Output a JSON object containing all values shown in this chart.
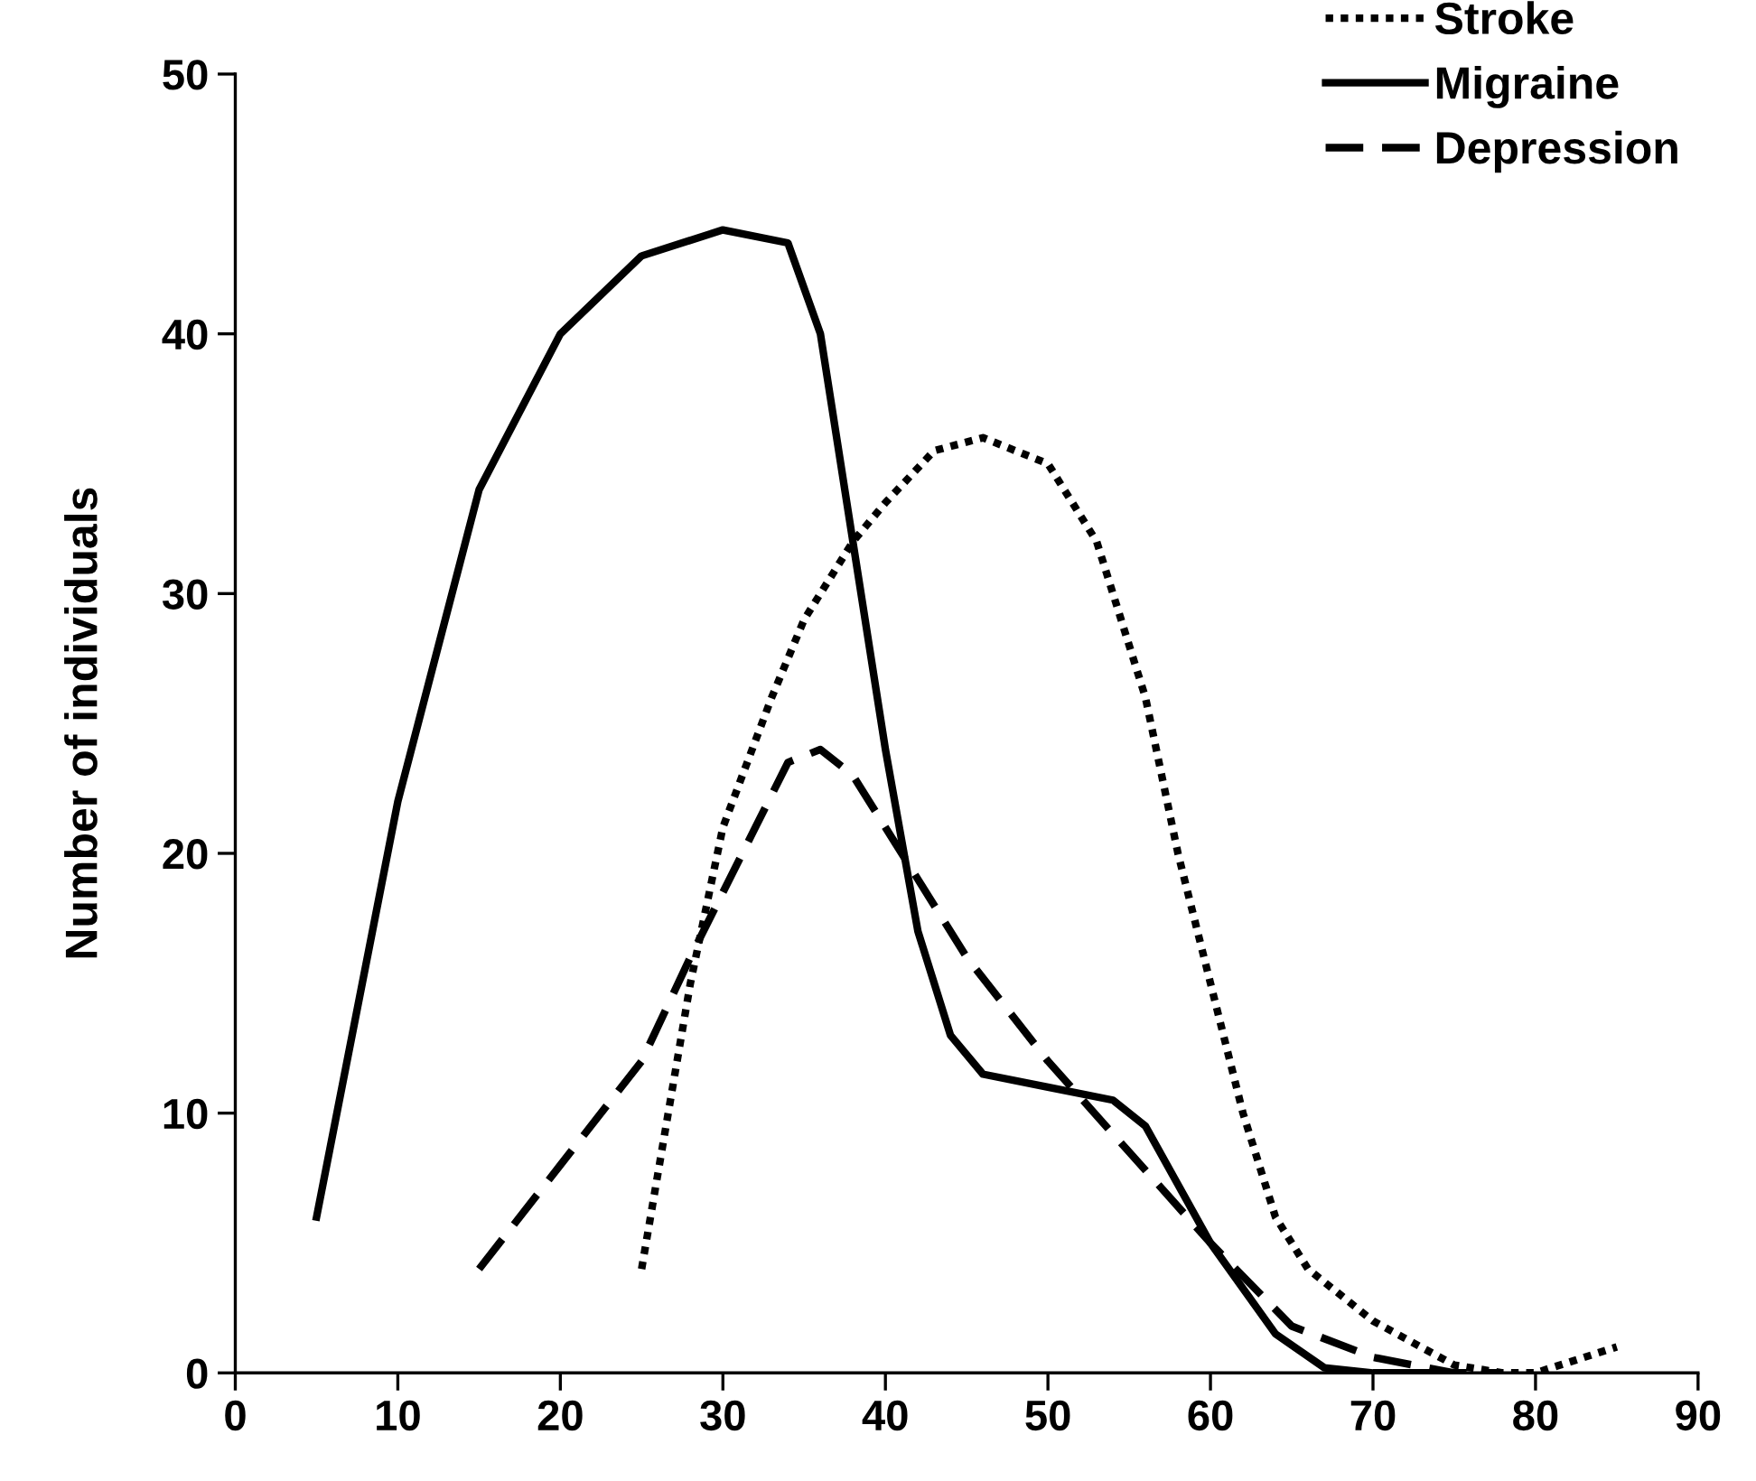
{
  "chart_data": {
    "type": "line",
    "ylabel": "Number of individuals",
    "xlim": [
      0,
      90
    ],
    "xticks": [
      0,
      10,
      20,
      30,
      40,
      50,
      60,
      70,
      80,
      90
    ],
    "ylim": [
      0,
      50
    ],
    "yticks": [
      0,
      10,
      20,
      30,
      40,
      50
    ],
    "grid": false,
    "legend": "top right",
    "marker": "none",
    "series": [
      {
        "name": "Stroke",
        "color": "#000000",
        "line_style": "dotted",
        "x": [
          25,
          28,
          30,
          33,
          35,
          38,
          40,
          43,
          46,
          50,
          53,
          56,
          58,
          60,
          62,
          64,
          66,
          70,
          75,
          78,
          80,
          85
        ],
        "values": [
          4,
          15,
          21,
          26,
          29,
          32,
          33.5,
          35.5,
          36,
          35,
          32,
          26,
          20,
          15,
          10,
          6,
          4,
          2,
          0.3,
          0,
          0,
          1
        ]
      },
      {
        "name": "Migraine",
        "color": "#000000",
        "line_style": "solid",
        "x": [
          5,
          10,
          15,
          20,
          25,
          30,
          34,
          36,
          38,
          40,
          42,
          44,
          46,
          50,
          54,
          56,
          60,
          64,
          67,
          70,
          75
        ],
        "values": [
          6,
          22,
          34,
          40,
          43,
          44,
          43.5,
          40,
          32,
          24,
          17,
          13,
          11.5,
          11,
          10.5,
          9.5,
          5,
          1.5,
          0.2,
          0,
          0
        ]
      },
      {
        "name": "Depression",
        "color": "#000000",
        "line_style": "dashed",
        "x": [
          15,
          20,
          25,
          28,
          32,
          34,
          36,
          38,
          40,
          45,
          50,
          55,
          60,
          65,
          70,
          75,
          78
        ],
        "values": [
          4,
          8,
          12,
          16,
          21,
          23.5,
          24,
          23,
          21,
          16,
          12,
          8.5,
          5,
          1.8,
          0.6,
          0,
          0
        ]
      }
    ]
  }
}
